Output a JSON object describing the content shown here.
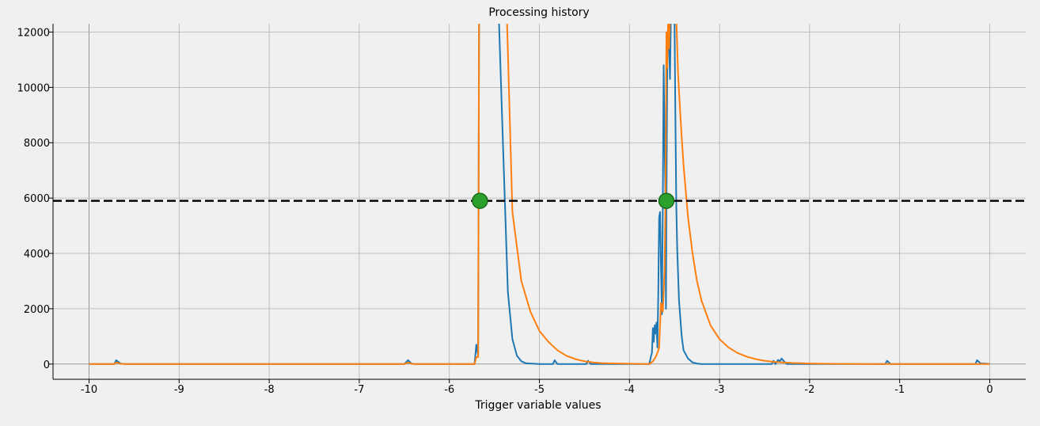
{
  "chart_data": {
    "type": "line",
    "title": "Processing history",
    "xlabel": "Trigger variable values",
    "ylabel": "",
    "xlim": [
      -10.4,
      0.4
    ],
    "ylim": [
      -550,
      12300
    ],
    "xticks": [
      -10,
      -9,
      -8,
      -7,
      -6,
      -5,
      -4,
      -3,
      -2,
      -1,
      0
    ],
    "xtick_labels": [
      "-10",
      "-9",
      "-8",
      "-7",
      "-6",
      "-5",
      "-4",
      "-3",
      "-2",
      "-1",
      "0"
    ],
    "yticks": [
      0,
      2000,
      4000,
      6000,
      8000,
      10000,
      12000
    ],
    "ytick_labels": [
      "0",
      "2000",
      "4000",
      "6000",
      "8000",
      "10000",
      "12000"
    ],
    "grid": true,
    "threshold": {
      "y": 5900,
      "style": "dashed",
      "color": "#000000"
    },
    "markers": [
      {
        "x": -5.66,
        "y": 5900,
        "color": "#2ca02c"
      },
      {
        "x": -3.59,
        "y": 5900,
        "color": "#2ca02c"
      }
    ],
    "series": [
      {
        "color": "#1f77b4",
        "x": [
          -10,
          -9.72,
          -9.7,
          -9.65,
          -9.6,
          -6.5,
          -6.46,
          -6.42,
          -6.38,
          -5.72,
          -5.7,
          -5.68,
          -5.67,
          -5.66,
          -5.65,
          -5.64,
          -5.62,
          -5.6,
          -5.55,
          -5.5,
          -5.45,
          -5.4,
          -5.35,
          -5.3,
          -5.25,
          -5.2,
          -5.15,
          -5.0,
          -4.85,
          -4.83,
          -4.8,
          -4.48,
          -4.46,
          -4.43,
          -3.78,
          -3.77,
          -3.76,
          -3.75,
          -3.74,
          -3.73,
          -3.72,
          -3.71,
          -3.7,
          -3.69,
          -3.68,
          -3.67,
          -3.66,
          -3.65,
          -3.64,
          -3.63,
          -3.62,
          -3.61,
          -3.6,
          -3.595,
          -3.59,
          -3.58,
          -3.57,
          -3.56,
          -3.55,
          -3.54,
          -3.53,
          -3.52,
          -3.51,
          -3.5,
          -3.49,
          -3.48,
          -3.47,
          -3.45,
          -3.42,
          -3.4,
          -3.35,
          -3.3,
          -3.25,
          -3.2,
          -3.15,
          -3.0,
          -2.42,
          -2.4,
          -2.38,
          -2.35,
          -2.33,
          -2.31,
          -2.29,
          -2.27,
          -2.25,
          -2.2,
          -1.16,
          -1.14,
          -1.1,
          -0.16,
          -0.14,
          -0.1,
          -0.05,
          0
        ],
        "y": [
          0,
          0,
          140,
          20,
          0,
          0,
          140,
          20,
          0,
          0,
          700,
          300,
          12500,
          12500,
          12500,
          12500,
          12500,
          12500,
          12500,
          12500,
          12500,
          7500,
          2600,
          900,
          300,
          100,
          30,
          0,
          0,
          140,
          0,
          0,
          120,
          0,
          0,
          150,
          300,
          400,
          1300,
          800,
          1400,
          1100,
          1500,
          600,
          2500,
          5300,
          5500,
          3500,
          1800,
          5600,
          10800,
          8000,
          6000,
          2000,
          5700,
          11000,
          12000,
          11500,
          10300,
          12500,
          12500,
          12500,
          12500,
          12500,
          9000,
          5700,
          4200,
          2300,
          1000,
          500,
          200,
          60,
          20,
          0,
          0,
          0,
          0,
          120,
          0,
          150,
          100,
          200,
          120,
          50,
          0,
          0,
          0,
          120,
          0,
          0,
          140,
          20,
          20,
          0
        ],
        "smooth": false
      },
      {
        "color": "#ff7f0e",
        "x": [
          -10,
          -9.72,
          -9.7,
          -9.65,
          -9.6,
          -6.5,
          -6.46,
          -6.42,
          -6.38,
          -5.72,
          -5.7,
          -5.68,
          -5.67,
          -5.66,
          -5.6,
          -5.55,
          -5.5,
          -5.45,
          -5.4,
          -5.36,
          -5.3,
          -5.2,
          -5.1,
          -5.0,
          -4.9,
          -4.8,
          -4.7,
          -4.6,
          -4.5,
          -4.4,
          -4.3,
          -3.78,
          -3.74,
          -3.71,
          -3.69,
          -3.67,
          -3.65,
          -3.63,
          -3.62,
          -3.61,
          -3.6,
          -3.59,
          -3.58,
          -3.57,
          -3.56,
          -3.55,
          -3.54,
          -3.53,
          -3.52,
          -3.51,
          -3.5,
          -3.48,
          -3.46,
          -3.44,
          -3.42,
          -3.4,
          -3.35,
          -3.3,
          -3.25,
          -3.2,
          -3.1,
          -3.0,
          -2.9,
          -2.8,
          -2.7,
          -2.6,
          -2.5,
          -2.4,
          -2.2,
          -2.0,
          -1.8,
          -1.5,
          -1.0,
          -0.5,
          0
        ],
        "y": [
          0,
          0,
          60,
          10,
          0,
          0,
          60,
          10,
          0,
          0,
          250,
          250,
          12500,
          12500,
          12500,
          12500,
          12500,
          12500,
          12500,
          12500,
          5500,
          3000,
          1900,
          1200,
          800,
          500,
          300,
          180,
          100,
          60,
          30,
          0,
          100,
          250,
          400,
          600,
          2200,
          1900,
          2600,
          3400,
          5800,
          12000,
          10700,
          12500,
          11400,
          12500,
          12500,
          12500,
          12500,
          12500,
          12500,
          12500,
          10500,
          9300,
          8200,
          7200,
          5300,
          4000,
          3000,
          2300,
          1400,
          900,
          600,
          400,
          270,
          180,
          120,
          80,
          40,
          20,
          10,
          5,
          0,
          0,
          0
        ],
        "smooth": false
      }
    ]
  }
}
